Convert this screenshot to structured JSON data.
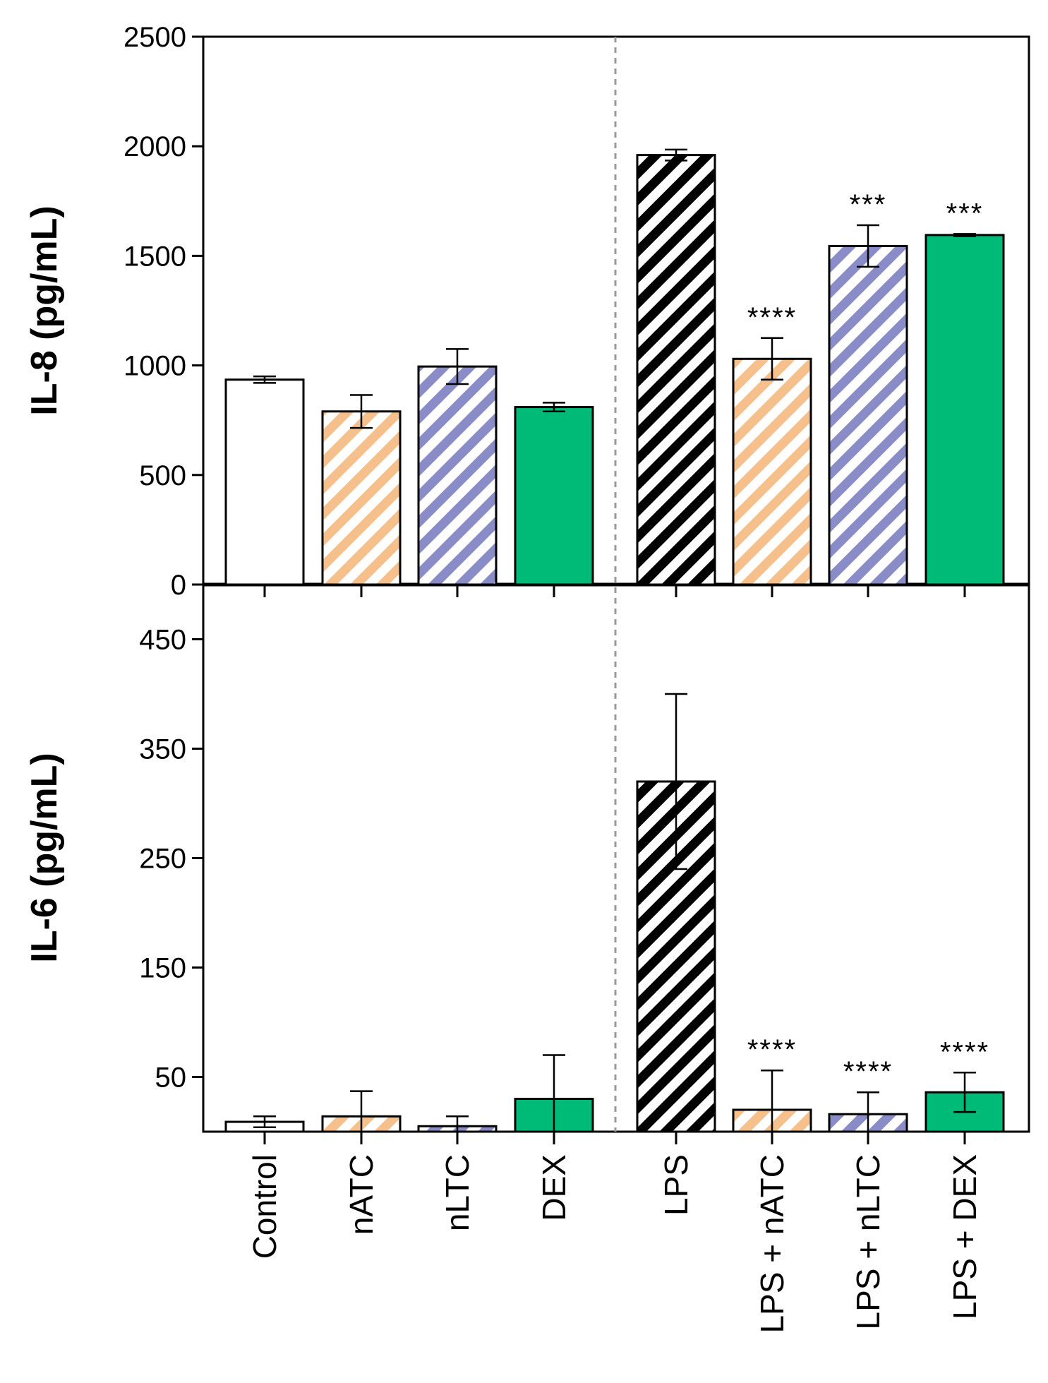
{
  "chart_data": {
    "type": "bar",
    "categories": [
      "Control",
      "nATC",
      "nLTC",
      "DEX",
      "LPS",
      "LPS + nATC",
      "LPS + nLTC",
      "LPS + DEX"
    ],
    "colors": {
      "control": "#ffffff",
      "natc": "#f5c08c",
      "nltc": "#8a8cc8",
      "dex": "#00bb77",
      "lps": "#000000",
      "edge": "#000000",
      "divider": "#999999"
    },
    "fill_styles": [
      "solid-white",
      "stripe-orange",
      "stripe-blue",
      "solid-green",
      "stripe-black",
      "stripe-orange",
      "stripe-blue",
      "solid-green"
    ],
    "panels": [
      {
        "ylabel": "IL-8 (pg/mL)",
        "ylim": [
          0,
          2500
        ],
        "yticks": [
          0,
          500,
          1000,
          1500,
          2000,
          2500
        ],
        "values": [
          935,
          790,
          995,
          810,
          1960,
          1030,
          1545,
          1595
        ],
        "errors": [
          15,
          75,
          80,
          20,
          25,
          95,
          95,
          5
        ],
        "significance": [
          "",
          "",
          "",
          "",
          "",
          "****",
          "***",
          "***"
        ]
      },
      {
        "ylabel": "IL-6 (pg/mL)",
        "ylim": [
          0,
          500
        ],
        "yticks": [
          50,
          150,
          250,
          350,
          450
        ],
        "values": [
          9,
          14,
          5,
          30,
          320,
          20,
          16,
          36
        ],
        "errors": [
          5,
          23,
          9,
          40,
          80,
          36,
          20,
          18
        ],
        "significance": [
          "",
          "",
          "",
          "",
          "",
          "****",
          "****",
          "****"
        ]
      }
    ]
  }
}
